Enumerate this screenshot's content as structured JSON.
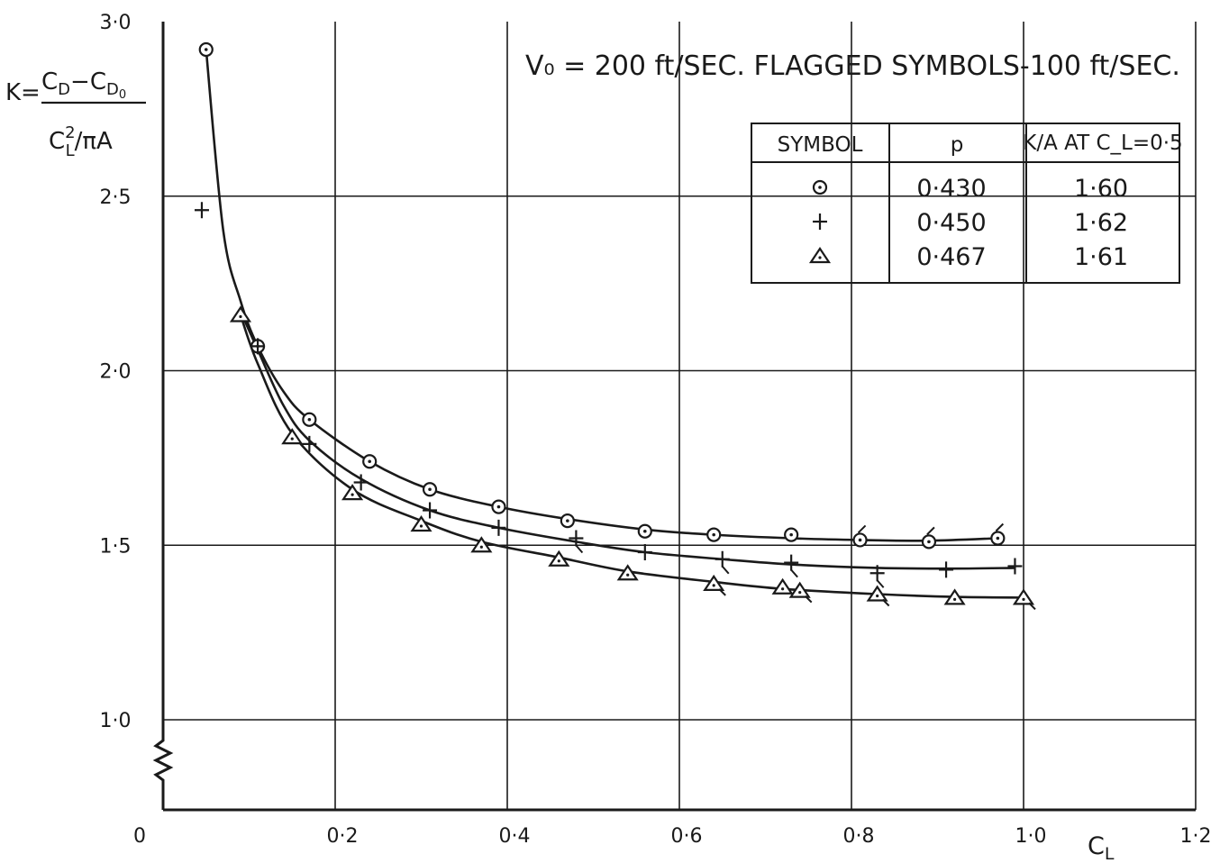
{
  "chart_data": {
    "type": "scatter",
    "title": "V₀ = 200 ft/SEC. FLAGGED SYMBOLS-100 ft/SEC.",
    "xlabel": "C_L",
    "ylabel": "K = (C_D − C_D0) / (C_L² / πA)",
    "xlim": [
      0,
      1.2
    ],
    "ylim": [
      0.75,
      3.0
    ],
    "y_axis_broken_below": 1.0,
    "grid": true,
    "x_ticks": [
      "0",
      "0·2",
      "0·4",
      "0·6",
      "0·8",
      "1·0",
      "1·2"
    ],
    "y_ticks": [
      "1·0",
      "1·5",
      "2·0",
      "2·5",
      "3·0"
    ],
    "series": [
      {
        "symbol": "circle-dot",
        "p": "0·430",
        "kA": "1·60",
        "points": [
          {
            "x": 0.05,
            "y": 2.92
          },
          {
            "x": 0.11,
            "y": 2.07
          },
          {
            "x": 0.17,
            "y": 1.86
          },
          {
            "x": 0.24,
            "y": 1.74
          },
          {
            "x": 0.31,
            "y": 1.66
          },
          {
            "x": 0.39,
            "y": 1.61
          },
          {
            "x": 0.47,
            "y": 1.57
          },
          {
            "x": 0.56,
            "y": 1.54
          },
          {
            "x": 0.64,
            "y": 1.53
          },
          {
            "x": 0.73,
            "y": 1.53
          },
          {
            "x": 0.81,
            "y": 1.515,
            "flagged": true
          },
          {
            "x": 0.89,
            "y": 1.51,
            "flagged": true
          },
          {
            "x": 0.97,
            "y": 1.52,
            "flagged": true
          }
        ],
        "curve": [
          [
            0.05,
            2.92
          ],
          [
            0.07,
            2.4
          ],
          [
            0.09,
            2.2
          ],
          [
            0.11,
            2.07
          ],
          [
            0.14,
            1.94
          ],
          [
            0.17,
            1.86
          ],
          [
            0.24,
            1.74
          ],
          [
            0.31,
            1.66
          ],
          [
            0.39,
            1.61
          ],
          [
            0.47,
            1.575
          ],
          [
            0.56,
            1.545
          ],
          [
            0.64,
            1.53
          ],
          [
            0.73,
            1.52
          ],
          [
            0.81,
            1.515
          ],
          [
            0.89,
            1.513
          ],
          [
            0.97,
            1.52
          ]
        ]
      },
      {
        "symbol": "plus",
        "p": "0·450",
        "kA": "1·62",
        "points": [
          {
            "x": 0.045,
            "y": 2.46
          },
          {
            "x": 0.11,
            "y": 2.07
          },
          {
            "x": 0.17,
            "y": 1.79
          },
          {
            "x": 0.23,
            "y": 1.68
          },
          {
            "x": 0.31,
            "y": 1.6
          },
          {
            "x": 0.39,
            "y": 1.55
          },
          {
            "x": 0.48,
            "y": 1.52,
            "flagged": true
          },
          {
            "x": 0.56,
            "y": 1.48
          },
          {
            "x": 0.65,
            "y": 1.46,
            "flagged": true
          },
          {
            "x": 0.73,
            "y": 1.45,
            "flagged": true
          },
          {
            "x": 0.83,
            "y": 1.42,
            "flagged": true
          },
          {
            "x": 0.91,
            "y": 1.43
          },
          {
            "x": 0.99,
            "y": 1.44
          }
        ],
        "curve": [
          [
            0.09,
            2.17
          ],
          [
            0.11,
            2.06
          ],
          [
            0.14,
            1.9
          ],
          [
            0.17,
            1.8
          ],
          [
            0.23,
            1.69
          ],
          [
            0.31,
            1.6
          ],
          [
            0.39,
            1.55
          ],
          [
            0.48,
            1.51
          ],
          [
            0.56,
            1.48
          ],
          [
            0.65,
            1.46
          ],
          [
            0.73,
            1.445
          ],
          [
            0.83,
            1.435
          ],
          [
            0.91,
            1.433
          ],
          [
            0.99,
            1.435
          ]
        ]
      },
      {
        "symbol": "triangle",
        "p": "0·467",
        "kA": "1·61",
        "points": [
          {
            "x": 0.09,
            "y": 2.16
          },
          {
            "x": 0.15,
            "y": 1.81
          },
          {
            "x": 0.22,
            "y": 1.65
          },
          {
            "x": 0.3,
            "y": 1.56
          },
          {
            "x": 0.37,
            "y": 1.5
          },
          {
            "x": 0.46,
            "y": 1.46
          },
          {
            "x": 0.54,
            "y": 1.42
          },
          {
            "x": 0.64,
            "y": 1.39,
            "flagged": true
          },
          {
            "x": 0.72,
            "y": 1.38
          },
          {
            "x": 0.74,
            "y": 1.37,
            "flagged": true
          },
          {
            "x": 0.83,
            "y": 1.36,
            "flagged": true
          },
          {
            "x": 0.92,
            "y": 1.35
          },
          {
            "x": 1.0,
            "y": 1.35,
            "flagged": true
          }
        ],
        "curve": [
          [
            0.09,
            2.16
          ],
          [
            0.11,
            2.02
          ],
          [
            0.15,
            1.82
          ],
          [
            0.22,
            1.66
          ],
          [
            0.3,
            1.57
          ],
          [
            0.37,
            1.51
          ],
          [
            0.46,
            1.465
          ],
          [
            0.54,
            1.425
          ],
          [
            0.64,
            1.395
          ],
          [
            0.72,
            1.375
          ],
          [
            0.83,
            1.36
          ],
          [
            0.92,
            1.352
          ],
          [
            1.0,
            1.35
          ]
        ]
      }
    ],
    "legend_table": {
      "headers": [
        "SYMBOL",
        "p",
        "K/A AT C_L=0·5"
      ],
      "rows": [
        {
          "symbol": "circle-dot",
          "p": "0·430",
          "kA": "1·60"
        },
        {
          "symbol": "plus",
          "p": "0·450",
          "kA": "1·62"
        },
        {
          "symbol": "triangle",
          "p": "0·467",
          "kA": "1·61"
        }
      ],
      "placement": "top-right"
    }
  }
}
